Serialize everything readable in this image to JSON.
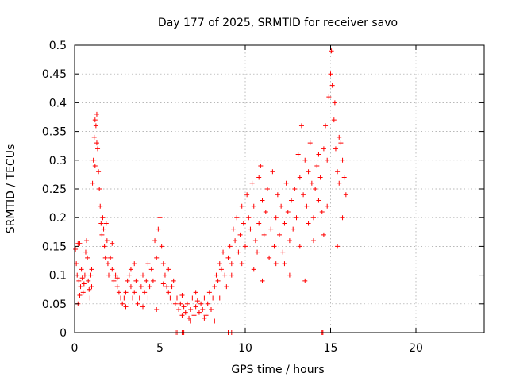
{
  "chart_data": {
    "type": "scatter",
    "title": "Day 177 of 2025, SRMTID for receiver savo",
    "xlabel": "GPS time / hours",
    "ylabel": "SRMTID / TECUs",
    "xlim": [
      0,
      24
    ],
    "ylim": [
      0,
      0.5
    ],
    "xticks": [
      0,
      5,
      10,
      15,
      20
    ],
    "xtick_labels": [
      "0",
      "5",
      "10",
      "15",
      "20"
    ],
    "yticks": [
      0,
      0.05,
      0.1,
      0.15,
      0.2,
      0.25,
      0.3,
      0.35,
      0.4,
      0.45,
      0.5
    ],
    "ytick_labels": [
      "0",
      "0.05",
      "0.1",
      "0.15",
      "0.2",
      "0.25",
      "0.3",
      "0.35",
      "0.4",
      "0.45",
      "0.5"
    ],
    "grid": true,
    "marker": "+",
    "point_color": "#ff0000",
    "series": [
      {
        "name": "SRMTID",
        "points": [
          [
            0.05,
            0.145
          ],
          [
            0.1,
            0.12
          ],
          [
            0.15,
            0.1
          ],
          [
            0.2,
            0.155
          ],
          [
            0.25,
            0.09
          ],
          [
            0.3,
            0.065
          ],
          [
            0.35,
            0.08
          ],
          [
            0.4,
            0.11
          ],
          [
            0.45,
            0.095
          ],
          [
            0.5,
            0.07
          ],
          [
            0.55,
            0.085
          ],
          [
            0.6,
            0.1
          ],
          [
            0.65,
            0.14
          ],
          [
            0.7,
            0.16
          ],
          [
            0.75,
            0.13
          ],
          [
            0.8,
            0.09
          ],
          [
            0.85,
            0.075
          ],
          [
            0.9,
            0.06
          ],
          [
            0.95,
            0.1
          ],
          [
            1.0,
            0.08
          ],
          [
            1.05,
            0.26
          ],
          [
            1.1,
            0.3
          ],
          [
            1.15,
            0.34
          ],
          [
            1.2,
            0.37
          ],
          [
            1.25,
            0.36
          ],
          [
            1.3,
            0.38
          ],
          [
            1.35,
            0.32
          ],
          [
            1.4,
            0.28
          ],
          [
            1.45,
            0.25
          ],
          [
            1.5,
            0.22
          ],
          [
            1.55,
            0.19
          ],
          [
            1.6,
            0.17
          ],
          [
            1.65,
            0.2
          ],
          [
            1.7,
            0.18
          ],
          [
            1.75,
            0.15
          ],
          [
            1.8,
            0.13
          ],
          [
            1.85,
            0.19
          ],
          [
            1.9,
            0.16
          ],
          [
            1.95,
            0.12
          ],
          [
            2.0,
            0.1
          ],
          [
            2.1,
            0.13
          ],
          [
            2.2,
            0.11
          ],
          [
            2.3,
            0.09
          ],
          [
            2.4,
            0.1
          ],
          [
            2.5,
            0.08
          ],
          [
            2.6,
            0.07
          ],
          [
            2.7,
            0.06
          ],
          [
            2.8,
            0.05
          ],
          [
            2.9,
            0.06
          ],
          [
            3.0,
            0.07
          ],
          [
            3.1,
            0.09
          ],
          [
            3.2,
            0.1
          ],
          [
            3.3,
            0.08
          ],
          [
            3.4,
            0.06
          ],
          [
            3.5,
            0.07
          ],
          [
            3.6,
            0.09
          ],
          [
            3.7,
            0.05
          ],
          [
            3.8,
            0.06
          ],
          [
            3.9,
            0.08
          ],
          [
            4.0,
            0.1
          ],
          [
            4.1,
            0.07
          ],
          [
            4.2,
            0.09
          ],
          [
            4.3,
            0.06
          ],
          [
            4.4,
            0.08
          ],
          [
            4.5,
            0.11
          ],
          [
            4.6,
            0.09
          ],
          [
            4.7,
            0.16
          ],
          [
            4.8,
            0.13
          ],
          [
            4.9,
            0.18
          ],
          [
            5.0,
            0.2
          ],
          [
            5.1,
            0.15
          ],
          [
            5.2,
            0.12
          ],
          [
            5.3,
            0.1
          ],
          [
            5.4,
            0.08
          ],
          [
            5.5,
            0.07
          ],
          [
            5.6,
            0.06
          ],
          [
            5.7,
            0.08
          ],
          [
            5.8,
            0.09
          ],
          [
            5.9,
            0.05
          ],
          [
            6.0,
            0.06
          ],
          [
            6.1,
            0.04
          ],
          [
            6.2,
            0.05
          ],
          [
            6.3,
            0.03
          ],
          [
            6.4,
            0.045
          ],
          [
            6.5,
            0.035
          ],
          [
            6.6,
            0.05
          ],
          [
            6.7,
            0.025
          ],
          [
            6.8,
            0.04
          ],
          [
            6.9,
            0.06
          ],
          [
            7.0,
            0.03
          ],
          [
            7.1,
            0.045
          ],
          [
            7.2,
            0.055
          ],
          [
            7.3,
            0.035
          ],
          [
            7.4,
            0.05
          ],
          [
            7.5,
            0.04
          ],
          [
            7.6,
            0.06
          ],
          [
            7.7,
            0.03
          ],
          [
            7.8,
            0.05
          ],
          [
            7.9,
            0.07
          ],
          [
            8.0,
            0.04
          ],
          [
            8.1,
            0.06
          ],
          [
            8.2,
            0.08
          ],
          [
            8.3,
            0.1
          ],
          [
            8.4,
            0.09
          ],
          [
            8.5,
            0.12
          ],
          [
            8.6,
            0.11
          ],
          [
            8.7,
            0.14
          ],
          [
            8.8,
            0.1
          ],
          [
            8.9,
            0.08
          ],
          [
            9.0,
            0.13
          ],
          [
            9.1,
            0.15
          ],
          [
            9.2,
            0.12
          ],
          [
            9.3,
            0.18
          ],
          [
            9.4,
            0.16
          ],
          [
            9.5,
            0.2
          ],
          [
            9.6,
            0.14
          ],
          [
            9.7,
            0.17
          ],
          [
            9.8,
            0.22
          ],
          [
            9.9,
            0.19
          ],
          [
            10.0,
            0.15
          ],
          [
            10.1,
            0.24
          ],
          [
            10.2,
            0.2
          ],
          [
            10.3,
            0.18
          ],
          [
            10.4,
            0.26
          ],
          [
            10.5,
            0.22
          ],
          [
            10.6,
            0.16
          ],
          [
            10.7,
            0.14
          ],
          [
            10.8,
            0.19
          ],
          [
            10.9,
            0.29
          ],
          [
            11.0,
            0.23
          ],
          [
            11.1,
            0.17
          ],
          [
            11.2,
            0.21
          ],
          [
            11.3,
            0.25
          ],
          [
            11.4,
            0.13
          ],
          [
            11.5,
            0.18
          ],
          [
            11.6,
            0.28
          ],
          [
            11.7,
            0.15
          ],
          [
            11.8,
            0.2
          ],
          [
            11.9,
            0.24
          ],
          [
            12.0,
            0.17
          ],
          [
            12.1,
            0.22
          ],
          [
            12.2,
            0.14
          ],
          [
            12.3,
            0.19
          ],
          [
            12.4,
            0.26
          ],
          [
            12.5,
            0.21
          ],
          [
            12.6,
            0.16
          ],
          [
            12.7,
            0.23
          ],
          [
            12.8,
            0.18
          ],
          [
            12.9,
            0.25
          ],
          [
            13.0,
            0.2
          ],
          [
            13.1,
            0.31
          ],
          [
            13.2,
            0.27
          ],
          [
            13.3,
            0.36
          ],
          [
            13.4,
            0.24
          ],
          [
            13.5,
            0.3
          ],
          [
            13.6,
            0.22
          ],
          [
            13.7,
            0.28
          ],
          [
            13.8,
            0.33
          ],
          [
            13.9,
            0.26
          ],
          [
            14.0,
            0.2
          ],
          [
            14.1,
            0.25
          ],
          [
            14.2,
            0.29
          ],
          [
            14.3,
            0.23
          ],
          [
            14.4,
            0.27
          ],
          [
            14.5,
            0.21
          ],
          [
            14.6,
            0.32
          ],
          [
            14.7,
            0.36
          ],
          [
            14.8,
            0.3
          ],
          [
            14.9,
            0.41
          ],
          [
            15.0,
            0.45
          ],
          [
            15.05,
            0.49
          ],
          [
            15.1,
            0.43
          ],
          [
            15.2,
            0.37
          ],
          [
            15.3,
            0.32
          ],
          [
            15.4,
            0.28
          ],
          [
            15.5,
            0.26
          ],
          [
            15.6,
            0.33
          ],
          [
            15.7,
            0.3
          ],
          [
            15.8,
            0.27
          ],
          [
            15.9,
            0.24
          ],
          [
            1.3,
            0.33
          ],
          [
            1.2,
            0.29
          ],
          [
            1.0,
            0.11
          ],
          [
            0.2,
            0.05
          ],
          [
            3.5,
            0.12
          ],
          [
            4.0,
            0.045
          ],
          [
            5.5,
            0.11
          ],
          [
            6.8,
            0.02
          ],
          [
            8.5,
            0.06
          ],
          [
            9.2,
            0.1
          ],
          [
            10.5,
            0.11
          ],
          [
            11.0,
            0.09
          ],
          [
            12.3,
            0.12
          ],
          [
            13.2,
            0.15
          ],
          [
            13.5,
            0.09
          ],
          [
            14.0,
            0.16
          ],
          [
            14.8,
            0.22
          ],
          [
            15.4,
            0.15
          ],
          [
            15.5,
            0.34
          ],
          [
            15.7,
            0.2
          ],
          [
            0.3,
            0.155
          ],
          [
            2.2,
            0.155
          ],
          [
            2.5,
            0.095
          ],
          [
            3.0,
            0.045
          ],
          [
            3.3,
            0.11
          ],
          [
            4.3,
            0.12
          ],
          [
            4.8,
            0.04
          ],
          [
            5.2,
            0.085
          ],
          [
            6.3,
            0.065
          ],
          [
            7.1,
            0.07
          ],
          [
            7.6,
            0.025
          ],
          [
            8.2,
            0.02
          ],
          [
            9.8,
            0.12
          ],
          [
            10.8,
            0.27
          ],
          [
            11.8,
            0.12
          ],
          [
            12.6,
            0.1
          ],
          [
            13.7,
            0.19
          ],
          [
            14.3,
            0.31
          ],
          [
            14.6,
            0.17
          ],
          [
            15.25,
            0.4
          ],
          [
            5.9,
            0.0
          ],
          [
            6.0,
            0.0
          ],
          [
            6.3,
            0.0
          ],
          [
            6.4,
            0.0
          ],
          [
            9.0,
            0.0
          ],
          [
            9.2,
            0.0
          ],
          [
            14.5,
            0.0
          ],
          [
            14.55,
            0.0
          ]
        ]
      }
    ]
  }
}
